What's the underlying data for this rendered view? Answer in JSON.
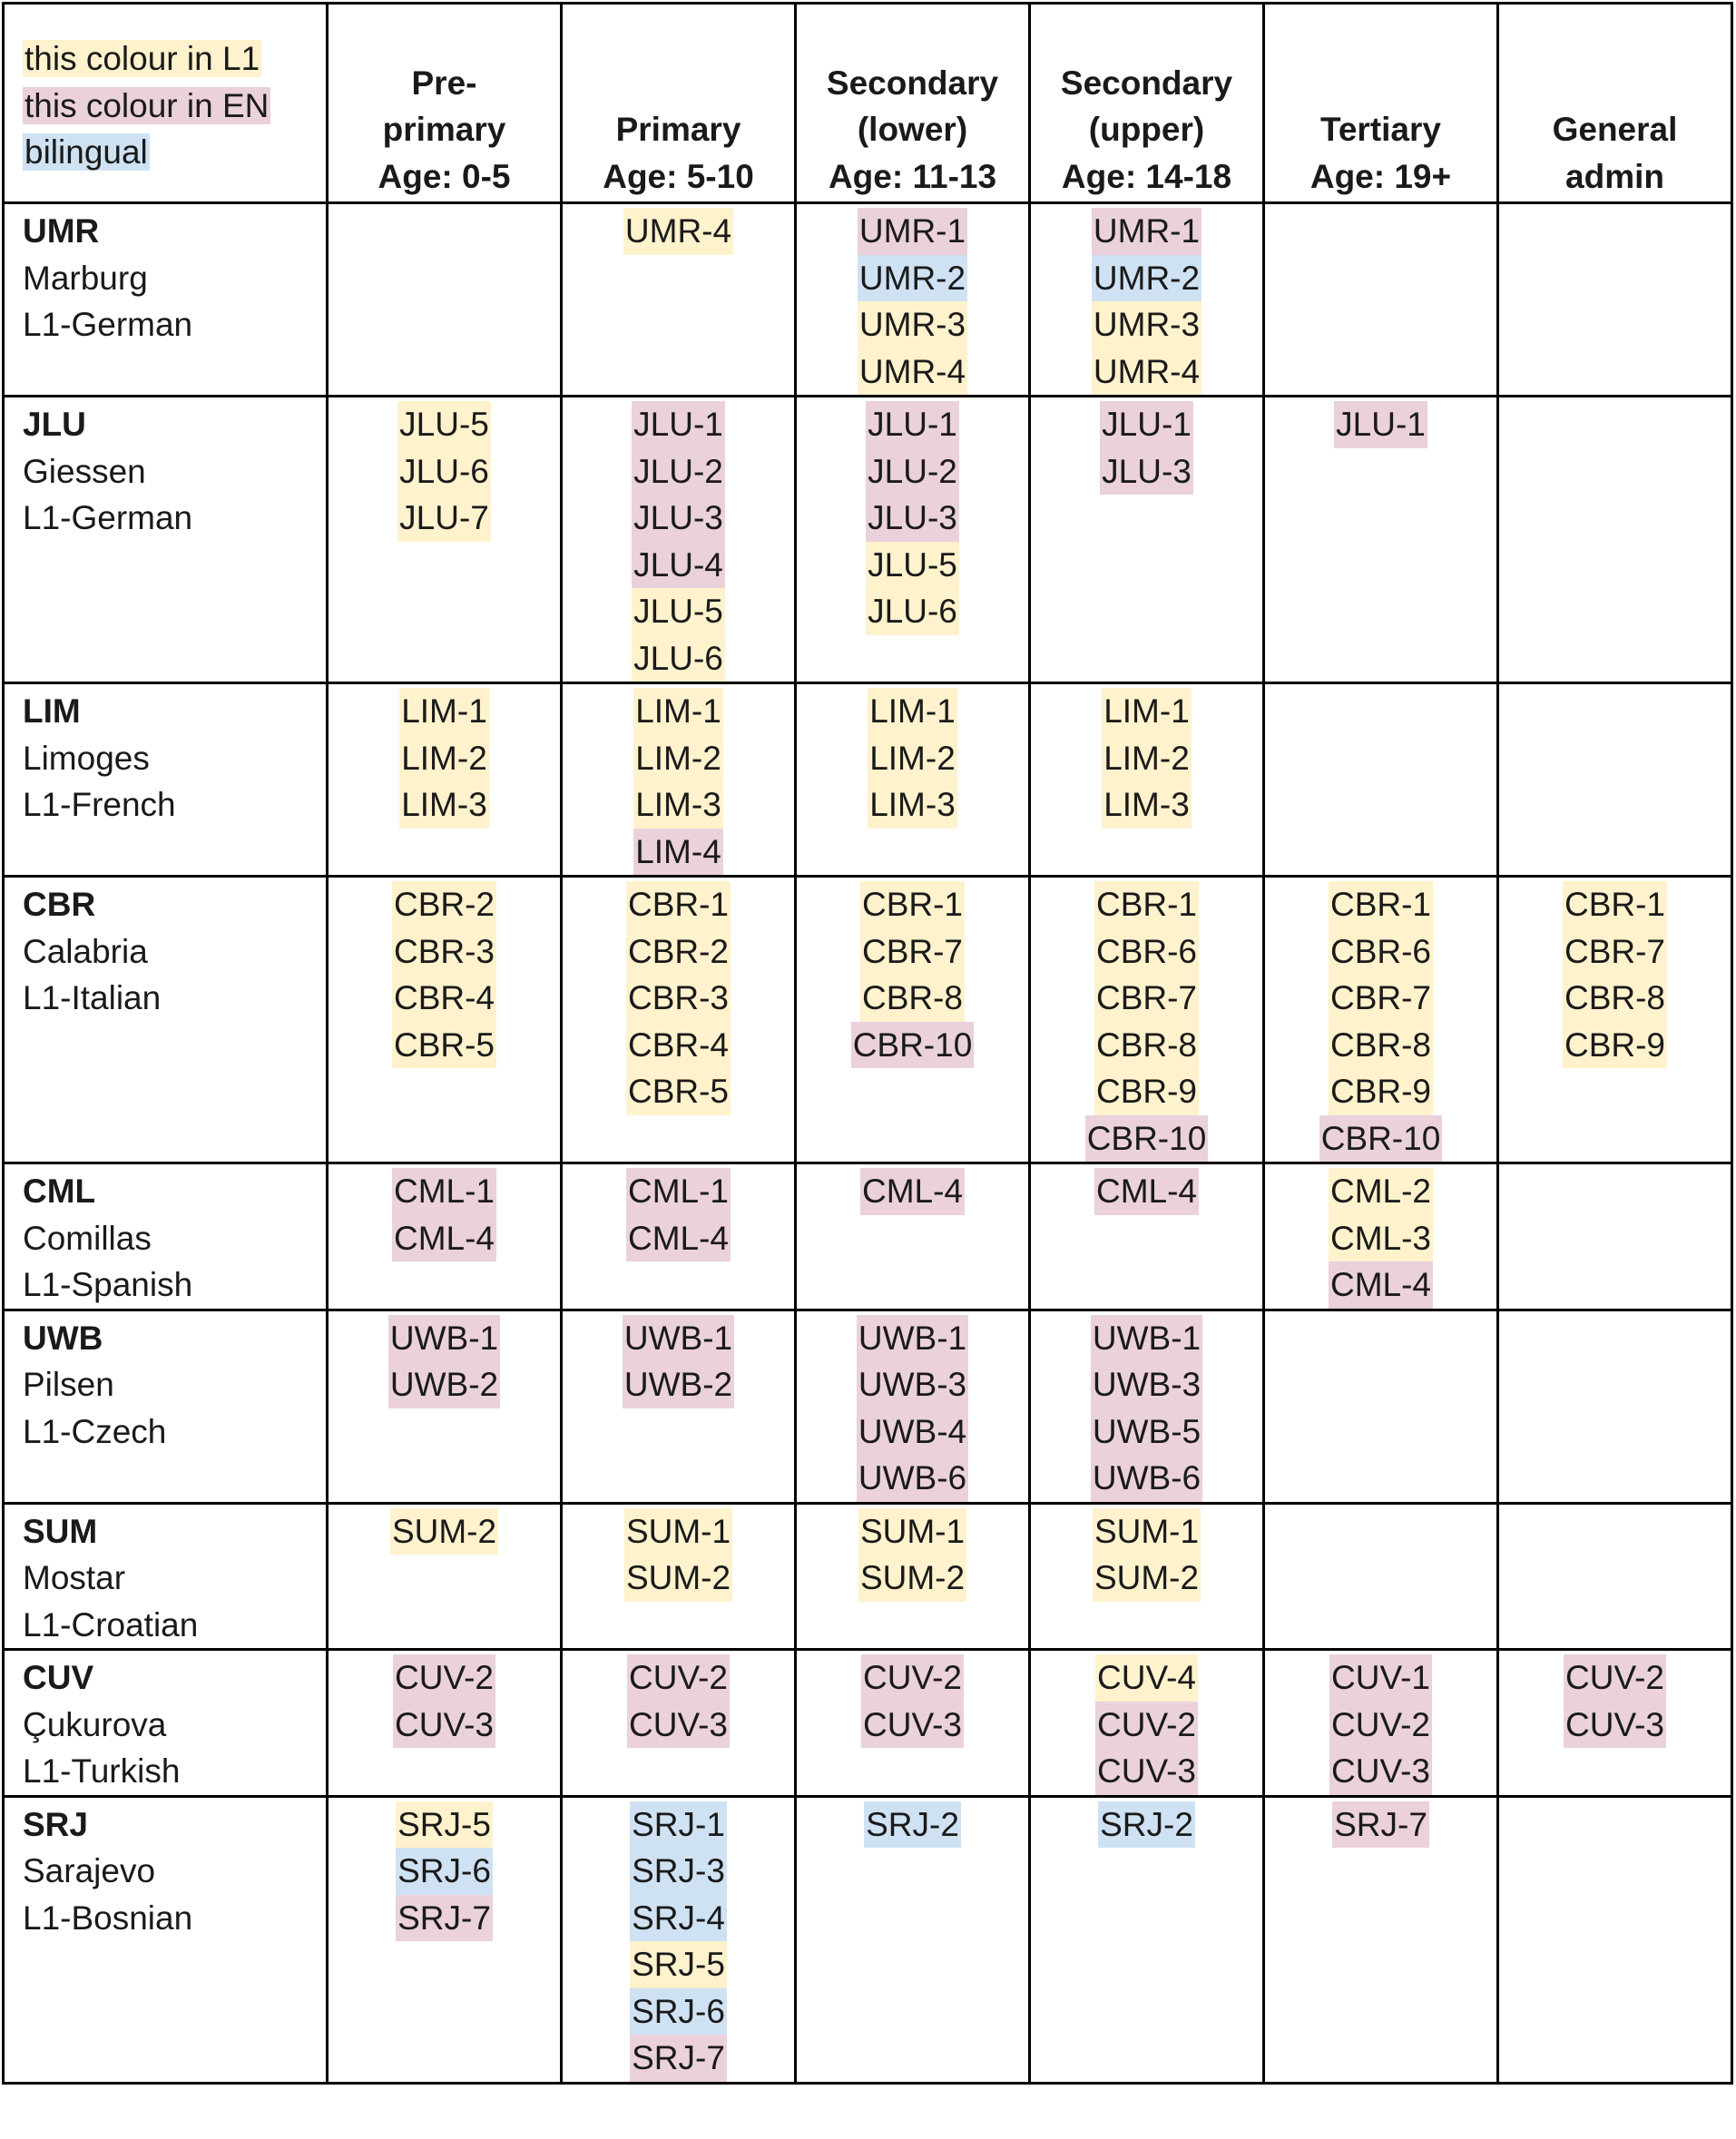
{
  "legend": {
    "l1_label": "this colour in L1",
    "en_label": "this colour in EN",
    "bilingual_label": "bilingual",
    "colors": {
      "l1": "#fff2cc",
      "en": "#ead1dc",
      "bilingual": "#cfe2f3"
    }
  },
  "columns": [
    {
      "lines": [
        "Pre-",
        "primary",
        "Age: 0-5"
      ]
    },
    {
      "lines": [
        "Primary",
        "Age: 5-10"
      ]
    },
    {
      "lines": [
        "Secondary",
        "(lower)",
        "Age: 11-13"
      ]
    },
    {
      "lines": [
        "Secondary",
        "(upper)",
        "Age: 14-18"
      ]
    },
    {
      "lines": [
        "Tertiary",
        "Age: 19+"
      ]
    },
    {
      "lines": [
        "General",
        "admin"
      ]
    }
  ],
  "rows": [
    {
      "code": "UMR",
      "city": "Marburg",
      "lang": "L1-German",
      "cells": [
        [],
        [
          [
            "UMR-4",
            "l1"
          ]
        ],
        [
          [
            "UMR-1",
            "en"
          ],
          [
            "UMR-2",
            "bi"
          ],
          [
            "UMR-3",
            "l1"
          ],
          [
            "UMR-4",
            "l1"
          ]
        ],
        [
          [
            "UMR-1",
            "en"
          ],
          [
            "UMR-2",
            "bi"
          ],
          [
            "UMR-3",
            "l1"
          ],
          [
            "UMR-4",
            "l1"
          ]
        ],
        [],
        []
      ]
    },
    {
      "code": "JLU",
      "city": "Giessen",
      "lang": "L1-German",
      "cells": [
        [
          [
            "JLU-5",
            "l1"
          ],
          [
            "JLU-6",
            "l1"
          ],
          [
            "JLU-7",
            "l1"
          ]
        ],
        [
          [
            "JLU-1",
            "en"
          ],
          [
            "JLU-2",
            "en"
          ],
          [
            "JLU-3",
            "en"
          ],
          [
            "JLU-4",
            "en"
          ],
          [
            "JLU-5",
            "l1"
          ],
          [
            "JLU-6",
            "l1"
          ]
        ],
        [
          [
            "JLU-1",
            "en"
          ],
          [
            "JLU-2",
            "en"
          ],
          [
            "JLU-3",
            "en"
          ],
          [
            "JLU-5",
            "l1"
          ],
          [
            "JLU-6",
            "l1"
          ]
        ],
        [
          [
            "JLU-1",
            "en"
          ],
          [
            "JLU-3",
            "en"
          ]
        ],
        [
          [
            "JLU-1",
            "en"
          ]
        ],
        []
      ]
    },
    {
      "code": "LIM",
      "city": "Limoges",
      "lang": "L1-French",
      "cells": [
        [
          [
            "LIM-1",
            "l1"
          ],
          [
            "LIM-2",
            "l1"
          ],
          [
            "LIM-3",
            "l1"
          ]
        ],
        [
          [
            "LIM-1",
            "l1"
          ],
          [
            "LIM-2",
            "l1"
          ],
          [
            "LIM-3",
            "l1"
          ],
          [
            "LIM-4",
            "en"
          ]
        ],
        [
          [
            "LIM-1",
            "l1"
          ],
          [
            "LIM-2",
            "l1"
          ],
          [
            "LIM-3",
            "l1"
          ]
        ],
        [
          [
            "LIM-1",
            "l1"
          ],
          [
            "LIM-2",
            "l1"
          ],
          [
            "LIM-3",
            "l1"
          ]
        ],
        [],
        []
      ]
    },
    {
      "code": "CBR",
      "city": "Calabria",
      "lang": "L1-Italian",
      "cells": [
        [
          [
            "CBR-2",
            "l1"
          ],
          [
            "CBR-3",
            "l1"
          ],
          [
            "CBR-4",
            "l1"
          ],
          [
            "CBR-5",
            "l1"
          ]
        ],
        [
          [
            "CBR-1",
            "l1"
          ],
          [
            "CBR-2",
            "l1"
          ],
          [
            "CBR-3",
            "l1"
          ],
          [
            "CBR-4",
            "l1"
          ],
          [
            "CBR-5",
            "l1"
          ]
        ],
        [
          [
            "CBR-1",
            "l1"
          ],
          [
            "CBR-7",
            "l1"
          ],
          [
            "CBR-8",
            "l1"
          ],
          [
            "CBR-10",
            "en"
          ]
        ],
        [
          [
            "CBR-1",
            "l1"
          ],
          [
            "CBR-6",
            "l1"
          ],
          [
            "CBR-7",
            "l1"
          ],
          [
            "CBR-8",
            "l1"
          ],
          [
            "CBR-9",
            "l1"
          ],
          [
            "CBR-10",
            "en"
          ]
        ],
        [
          [
            "CBR-1",
            "l1"
          ],
          [
            "CBR-6",
            "l1"
          ],
          [
            "CBR-7",
            "l1"
          ],
          [
            "CBR-8",
            "l1"
          ],
          [
            "CBR-9",
            "l1"
          ],
          [
            "CBR-10",
            "en"
          ]
        ],
        [
          [
            "CBR-1",
            "l1"
          ],
          [
            "CBR-7",
            "l1"
          ],
          [
            "CBR-8",
            "l1"
          ],
          [
            "CBR-9",
            "l1"
          ]
        ]
      ]
    },
    {
      "code": "CML",
      "city": "Comillas",
      "lang": "L1-Spanish",
      "cells": [
        [
          [
            "CML-1",
            "en"
          ],
          [
            "CML-4",
            "en"
          ]
        ],
        [
          [
            "CML-1",
            "en"
          ],
          [
            "CML-4",
            "en"
          ]
        ],
        [
          [
            "CML-4",
            "en"
          ]
        ],
        [
          [
            "CML-4",
            "en"
          ]
        ],
        [
          [
            "CML-2",
            "l1"
          ],
          [
            "CML-3",
            "l1"
          ],
          [
            "CML-4",
            "en"
          ]
        ],
        []
      ]
    },
    {
      "code": "UWB",
      "city": "Pilsen",
      "lang": "L1-Czech",
      "cells": [
        [
          [
            "UWB-1",
            "en"
          ],
          [
            "UWB-2",
            "en"
          ]
        ],
        [
          [
            "UWB-1",
            "en"
          ],
          [
            "UWB-2",
            "en"
          ]
        ],
        [
          [
            "UWB-1",
            "en"
          ],
          [
            "UWB-3",
            "en"
          ],
          [
            "UWB-4",
            "en"
          ],
          [
            "UWB-6",
            "en"
          ]
        ],
        [
          [
            "UWB-1",
            "en"
          ],
          [
            "UWB-3",
            "en"
          ],
          [
            "UWB-5",
            "en"
          ],
          [
            "UWB-6",
            "en"
          ]
        ],
        [],
        []
      ]
    },
    {
      "code": "SUM",
      "city": "Mostar",
      "lang": "L1-Croatian",
      "cells": [
        [
          [
            "SUM-2",
            "l1"
          ]
        ],
        [
          [
            "SUM-1",
            "l1"
          ],
          [
            "SUM-2",
            "l1"
          ]
        ],
        [
          [
            "SUM-1",
            "l1"
          ],
          [
            "SUM-2",
            "l1"
          ]
        ],
        [
          [
            "SUM-1",
            "l1"
          ],
          [
            "SUM-2",
            "l1"
          ]
        ],
        [],
        []
      ]
    },
    {
      "code": "CUV",
      "city": "Çukurova",
      "lang": "L1-Turkish",
      "cells": [
        [
          [
            "CUV-2",
            "en"
          ],
          [
            "CUV-3",
            "en"
          ]
        ],
        [
          [
            "CUV-2",
            "en"
          ],
          [
            "CUV-3",
            "en"
          ]
        ],
        [
          [
            "CUV-2",
            "en"
          ],
          [
            "CUV-3",
            "en"
          ]
        ],
        [
          [
            "CUV-4",
            "l1"
          ],
          [
            "CUV-2",
            "en"
          ],
          [
            "CUV-3",
            "en"
          ]
        ],
        [
          [
            "CUV-1",
            "en"
          ],
          [
            "CUV-2",
            "en"
          ],
          [
            "CUV-3",
            "en"
          ]
        ],
        [
          [
            "CUV-2",
            "en"
          ],
          [
            "CUV-3",
            "en"
          ]
        ]
      ]
    },
    {
      "code": "SRJ",
      "city": "Sarajevo",
      "lang": "L1-Bosnian",
      "cells": [
        [
          [
            "SRJ-5",
            "l1"
          ],
          [
            "SRJ-6",
            "bi"
          ],
          [
            "SRJ-7",
            "en"
          ]
        ],
        [
          [
            "SRJ-1",
            "bi"
          ],
          [
            "SRJ-3",
            "bi"
          ],
          [
            "SRJ-4",
            "bi"
          ],
          [
            "SRJ-5",
            "l1"
          ],
          [
            "SRJ-6",
            "bi"
          ],
          [
            "SRJ-7",
            "en"
          ]
        ],
        [
          [
            "SRJ-2",
            "bi"
          ]
        ],
        [
          [
            "SRJ-2",
            "bi"
          ]
        ],
        [
          [
            "SRJ-7",
            "en"
          ]
        ],
        []
      ]
    }
  ]
}
